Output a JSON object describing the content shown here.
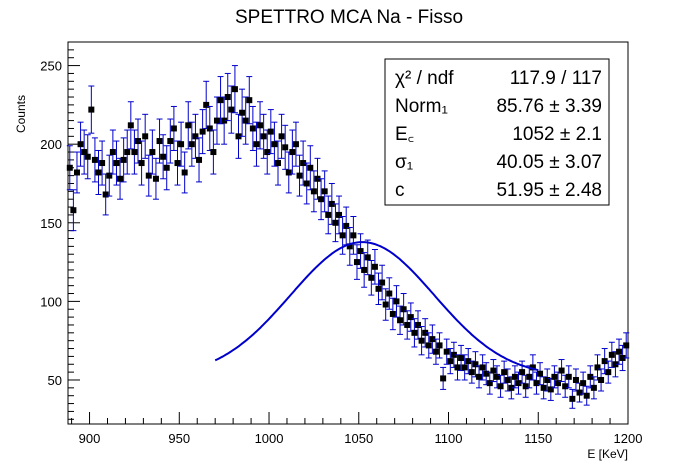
{
  "chart_data": {
    "type": "scatter",
    "title": "SPETTRO MCA Na - Fisso",
    "xlabel": "E [KeV]",
    "ylabel": "Counts",
    "xlim": [
      888,
      1200
    ],
    "ylim": [
      22,
      265
    ],
    "x_ticks": [
      900,
      950,
      1000,
      1050,
      1100,
      1150,
      1200
    ],
    "y_ticks": [
      50,
      100,
      150,
      200,
      250
    ],
    "grid": false,
    "legend": "none",
    "colors": {
      "points": "#000000",
      "fit": "#0000cc",
      "error_bars": "#0000cc"
    },
    "series": [
      {
        "values": [
          {
            "x": 889,
            "y": 185,
            "e": 14
          },
          {
            "x": 891,
            "y": 158,
            "e": 13
          },
          {
            "x": 893,
            "y": 182,
            "e": 13
          },
          {
            "x": 895,
            "y": 200,
            "e": 14
          },
          {
            "x": 897,
            "y": 195,
            "e": 14
          },
          {
            "x": 899,
            "y": 192,
            "e": 14
          },
          {
            "x": 901,
            "y": 222,
            "e": 15
          },
          {
            "x": 903,
            "y": 190,
            "e": 14
          },
          {
            "x": 905,
            "y": 182,
            "e": 14
          },
          {
            "x": 907,
            "y": 188,
            "e": 14
          },
          {
            "x": 909,
            "y": 168,
            "e": 13
          },
          {
            "x": 911,
            "y": 180,
            "e": 13
          },
          {
            "x": 913,
            "y": 195,
            "e": 14
          },
          {
            "x": 915,
            "y": 188,
            "e": 14
          },
          {
            "x": 917,
            "y": 178,
            "e": 13
          },
          {
            "x": 919,
            "y": 190,
            "e": 14
          },
          {
            "x": 921,
            "y": 195,
            "e": 14
          },
          {
            "x": 923,
            "y": 212,
            "e": 15
          },
          {
            "x": 925,
            "y": 195,
            "e": 14
          },
          {
            "x": 927,
            "y": 202,
            "e": 14
          },
          {
            "x": 929,
            "y": 188,
            "e": 14
          },
          {
            "x": 931,
            "y": 205,
            "e": 14
          },
          {
            "x": 933,
            "y": 180,
            "e": 13
          },
          {
            "x": 935,
            "y": 195,
            "e": 14
          },
          {
            "x": 937,
            "y": 178,
            "e": 13
          },
          {
            "x": 939,
            "y": 202,
            "e": 14
          },
          {
            "x": 941,
            "y": 192,
            "e": 14
          },
          {
            "x": 943,
            "y": 185,
            "e": 14
          },
          {
            "x": 945,
            "y": 202,
            "e": 14
          },
          {
            "x": 947,
            "y": 210,
            "e": 14
          },
          {
            "x": 949,
            "y": 188,
            "e": 14
          },
          {
            "x": 951,
            "y": 200,
            "e": 14
          },
          {
            "x": 953,
            "y": 182,
            "e": 13
          },
          {
            "x": 955,
            "y": 212,
            "e": 15
          },
          {
            "x": 957,
            "y": 200,
            "e": 14
          },
          {
            "x": 959,
            "y": 205,
            "e": 14
          },
          {
            "x": 961,
            "y": 190,
            "e": 14
          },
          {
            "x": 963,
            "y": 208,
            "e": 14
          },
          {
            "x": 965,
            "y": 225,
            "e": 15
          },
          {
            "x": 967,
            "y": 210,
            "e": 14
          },
          {
            "x": 969,
            "y": 195,
            "e": 14
          },
          {
            "x": 971,
            "y": 215,
            "e": 15
          },
          {
            "x": 973,
            "y": 228,
            "e": 15
          },
          {
            "x": 975,
            "y": 215,
            "e": 15
          },
          {
            "x": 977,
            "y": 230,
            "e": 15
          },
          {
            "x": 979,
            "y": 222,
            "e": 15
          },
          {
            "x": 981,
            "y": 235,
            "e": 15
          },
          {
            "x": 983,
            "y": 205,
            "e": 14
          },
          {
            "x": 985,
            "y": 220,
            "e": 15
          },
          {
            "x": 987,
            "y": 215,
            "e": 15
          },
          {
            "x": 989,
            "y": 228,
            "e": 15
          },
          {
            "x": 991,
            "y": 210,
            "e": 14
          },
          {
            "x": 993,
            "y": 200,
            "e": 14
          },
          {
            "x": 995,
            "y": 212,
            "e": 15
          },
          {
            "x": 997,
            "y": 205,
            "e": 14
          },
          {
            "x": 999,
            "y": 195,
            "e": 14
          },
          {
            "x": 1001,
            "y": 208,
            "e": 14
          },
          {
            "x": 1003,
            "y": 200,
            "e": 14
          },
          {
            "x": 1005,
            "y": 188,
            "e": 14
          },
          {
            "x": 1007,
            "y": 205,
            "e": 14
          },
          {
            "x": 1009,
            "y": 198,
            "e": 14
          },
          {
            "x": 1011,
            "y": 182,
            "e": 13
          },
          {
            "x": 1013,
            "y": 195,
            "e": 14
          },
          {
            "x": 1015,
            "y": 200,
            "e": 14
          },
          {
            "x": 1017,
            "y": 180,
            "e": 13
          },
          {
            "x": 1019,
            "y": 188,
            "e": 14
          },
          {
            "x": 1021,
            "y": 175,
            "e": 13
          },
          {
            "x": 1023,
            "y": 185,
            "e": 14
          },
          {
            "x": 1025,
            "y": 170,
            "e": 13
          },
          {
            "x": 1027,
            "y": 178,
            "e": 13
          },
          {
            "x": 1029,
            "y": 165,
            "e": 13
          },
          {
            "x": 1031,
            "y": 170,
            "e": 13
          },
          {
            "x": 1033,
            "y": 155,
            "e": 12
          },
          {
            "x": 1035,
            "y": 162,
            "e": 13
          },
          {
            "x": 1037,
            "y": 150,
            "e": 12
          },
          {
            "x": 1039,
            "y": 155,
            "e": 12
          },
          {
            "x": 1041,
            "y": 142,
            "e": 12
          },
          {
            "x": 1043,
            "y": 148,
            "e": 12
          },
          {
            "x": 1045,
            "y": 135,
            "e": 12
          },
          {
            "x": 1047,
            "y": 142,
            "e": 12
          },
          {
            "x": 1049,
            "y": 125,
            "e": 11
          },
          {
            "x": 1051,
            "y": 132,
            "e": 11
          },
          {
            "x": 1053,
            "y": 120,
            "e": 11
          },
          {
            "x": 1055,
            "y": 128,
            "e": 11
          },
          {
            "x": 1057,
            "y": 115,
            "e": 11
          },
          {
            "x": 1059,
            "y": 122,
            "e": 11
          },
          {
            "x": 1061,
            "y": 108,
            "e": 10
          },
          {
            "x": 1063,
            "y": 112,
            "e": 11
          },
          {
            "x": 1065,
            "y": 98,
            "e": 10
          },
          {
            "x": 1067,
            "y": 105,
            "e": 10
          },
          {
            "x": 1069,
            "y": 92,
            "e": 10
          },
          {
            "x": 1071,
            "y": 100,
            "e": 10
          },
          {
            "x": 1073,
            "y": 88,
            "e": 9
          },
          {
            "x": 1075,
            "y": 95,
            "e": 10
          },
          {
            "x": 1077,
            "y": 85,
            "e": 9
          },
          {
            "x": 1079,
            "y": 90,
            "e": 9
          },
          {
            "x": 1081,
            "y": 80,
            "e": 9
          },
          {
            "x": 1083,
            "y": 85,
            "e": 9
          },
          {
            "x": 1085,
            "y": 75,
            "e": 9
          },
          {
            "x": 1087,
            "y": 80,
            "e": 9
          },
          {
            "x": 1089,
            "y": 72,
            "e": 8
          },
          {
            "x": 1091,
            "y": 76,
            "e": 9
          },
          {
            "x": 1093,
            "y": 68,
            "e": 8
          },
          {
            "x": 1095,
            "y": 72,
            "e": 8
          },
          {
            "x": 1097,
            "y": 51,
            "e": 7
          },
          {
            "x": 1099,
            "y": 68,
            "e": 8
          },
          {
            "x": 1101,
            "y": 62,
            "e": 8
          },
          {
            "x": 1103,
            "y": 66,
            "e": 8
          },
          {
            "x": 1105,
            "y": 58,
            "e": 8
          },
          {
            "x": 1107,
            "y": 64,
            "e": 8
          },
          {
            "x": 1109,
            "y": 58,
            "e": 8
          },
          {
            "x": 1111,
            "y": 62,
            "e": 8
          },
          {
            "x": 1113,
            "y": 55,
            "e": 7
          },
          {
            "x": 1115,
            "y": 60,
            "e": 8
          },
          {
            "x": 1117,
            "y": 52,
            "e": 7
          },
          {
            "x": 1119,
            "y": 58,
            "e": 8
          },
          {
            "x": 1121,
            "y": 54,
            "e": 7
          },
          {
            "x": 1123,
            "y": 48,
            "e": 7
          },
          {
            "x": 1125,
            "y": 56,
            "e": 7
          },
          {
            "x": 1127,
            "y": 52,
            "e": 7
          },
          {
            "x": 1129,
            "y": 46,
            "e": 7
          },
          {
            "x": 1131,
            "y": 55,
            "e": 7
          },
          {
            "x": 1133,
            "y": 50,
            "e": 7
          },
          {
            "x": 1135,
            "y": 45,
            "e": 7
          },
          {
            "x": 1137,
            "y": 52,
            "e": 7
          },
          {
            "x": 1139,
            "y": 48,
            "e": 7
          },
          {
            "x": 1141,
            "y": 55,
            "e": 7
          },
          {
            "x": 1143,
            "y": 46,
            "e": 7
          },
          {
            "x": 1145,
            "y": 52,
            "e": 7
          },
          {
            "x": 1147,
            "y": 58,
            "e": 8
          },
          {
            "x": 1149,
            "y": 48,
            "e": 7
          },
          {
            "x": 1151,
            "y": 54,
            "e": 7
          },
          {
            "x": 1153,
            "y": 45,
            "e": 7
          },
          {
            "x": 1155,
            "y": 50,
            "e": 7
          },
          {
            "x": 1157,
            "y": 44,
            "e": 7
          },
          {
            "x": 1159,
            "y": 52,
            "e": 7
          },
          {
            "x": 1161,
            "y": 48,
            "e": 7
          },
          {
            "x": 1163,
            "y": 56,
            "e": 7
          },
          {
            "x": 1165,
            "y": 46,
            "e": 7
          },
          {
            "x": 1167,
            "y": 52,
            "e": 7
          },
          {
            "x": 1169,
            "y": 38,
            "e": 6
          },
          {
            "x": 1171,
            "y": 50,
            "e": 7
          },
          {
            "x": 1173,
            "y": 42,
            "e": 6
          },
          {
            "x": 1175,
            "y": 48,
            "e": 7
          },
          {
            "x": 1177,
            "y": 40,
            "e": 6
          },
          {
            "x": 1179,
            "y": 52,
            "e": 7
          },
          {
            "x": 1181,
            "y": 45,
            "e": 7
          },
          {
            "x": 1183,
            "y": 58,
            "e": 8
          },
          {
            "x": 1185,
            "y": 50,
            "e": 7
          },
          {
            "x": 1187,
            "y": 62,
            "e": 8
          },
          {
            "x": 1189,
            "y": 55,
            "e": 7
          },
          {
            "x": 1191,
            "y": 66,
            "e": 8
          },
          {
            "x": 1193,
            "y": 60,
            "e": 8
          },
          {
            "x": 1195,
            "y": 68,
            "e": 8
          },
          {
            "x": 1197,
            "y": 64,
            "e": 8
          },
          {
            "x": 1199,
            "y": 72,
            "e": 8
          }
        ]
      }
    ],
    "fit": {
      "x_range": [
        970,
        1150
      ],
      "model": "Norm1*exp(-0.5*((x-Ec)/sigma1)^2)+c",
      "params": {
        "norm": 85.76,
        "mean": 1052,
        "sigma": 40.05,
        "const": 51.95
      }
    },
    "stats_box": {
      "rows": [
        {
          "label": "χ² / ndf",
          "value": "117.9 / 117"
        },
        {
          "label": "Norm₁",
          "value": "85.76 ± 3.39"
        },
        {
          "label": "E꜀",
          "value": "1052 ± 2.1"
        },
        {
          "label": "σ₁",
          "value": "40.05 ± 3.07"
        },
        {
          "label": "c",
          "value": "51.95 ± 2.48"
        }
      ]
    }
  }
}
